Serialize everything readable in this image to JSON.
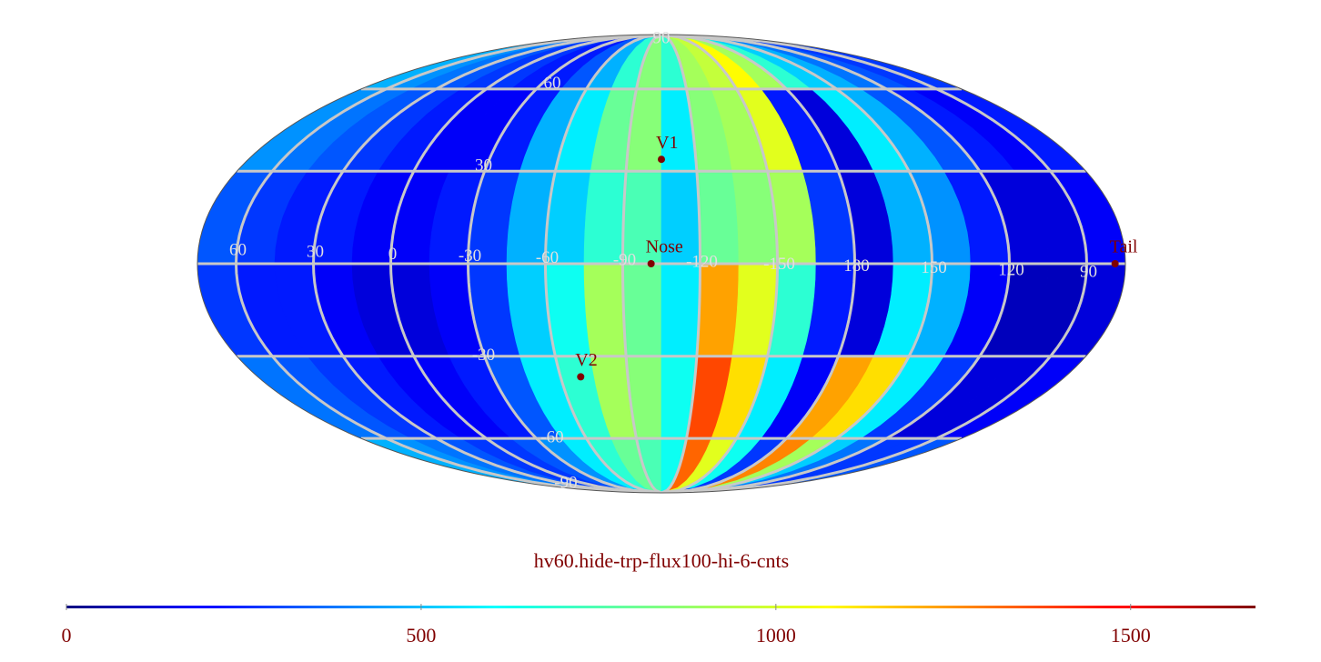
{
  "map": {
    "title": "hv60.hide-trp-flux100-hi-6-cnts",
    "lon_ticks": [
      60,
      30,
      0,
      -30,
      -60,
      -90,
      -120,
      -150,
      180,
      150,
      120,
      90
    ],
    "lat_ticks": [
      90,
      60,
      30,
      -30,
      -60,
      -90
    ],
    "values": [
      [
        500,
        450,
        400,
        350,
        300,
        300,
        250,
        250,
        350,
        500,
        700,
        850,
        700,
        900,
        950,
        1050,
        900,
        700,
        550,
        500,
        400,
        350,
        300,
        300
      ],
      [
        450,
        400,
        350,
        300,
        250,
        200,
        200,
        250,
        500,
        600,
        800,
        850,
        600,
        850,
        900,
        1000,
        250,
        150,
        600,
        500,
        350,
        250,
        200,
        250
      ],
      [
        350,
        300,
        250,
        250,
        200,
        200,
        250,
        300,
        500,
        550,
        700,
        750,
        550,
        800,
        850,
        900,
        300,
        150,
        500,
        450,
        250,
        150,
        150,
        200
      ],
      [
        300,
        250,
        250,
        200,
        150,
        150,
        200,
        300,
        550,
        650,
        900,
        800,
        600,
        1200,
        1000,
        700,
        250,
        150,
        600,
        500,
        200,
        100,
        100,
        150
      ],
      [
        400,
        350,
        300,
        250,
        200,
        200,
        250,
        350,
        600,
        700,
        900,
        850,
        650,
        1350,
        1100,
        600,
        200,
        1200,
        1100,
        600,
        300,
        150,
        150,
        200
      ],
      [
        500,
        450,
        400,
        350,
        300,
        300,
        350,
        450,
        600,
        700,
        800,
        750,
        650,
        1300,
        1000,
        650,
        300,
        1250,
        900,
        550,
        400,
        300,
        300,
        350
      ]
    ],
    "markers": [
      {
        "label": "V1",
        "lon": -105,
        "lat": 34
      },
      {
        "label": "Nose",
        "lon": -101,
        "lat": 0
      },
      {
        "label": "V2",
        "lon": -69,
        "lat": -37
      },
      {
        "label": "Tail",
        "lon": 79,
        "lat": 0
      }
    ],
    "colorbar": {
      "lim": [
        0,
        1676
      ],
      "ticks": [
        0,
        500,
        1000,
        1500
      ]
    }
  }
}
